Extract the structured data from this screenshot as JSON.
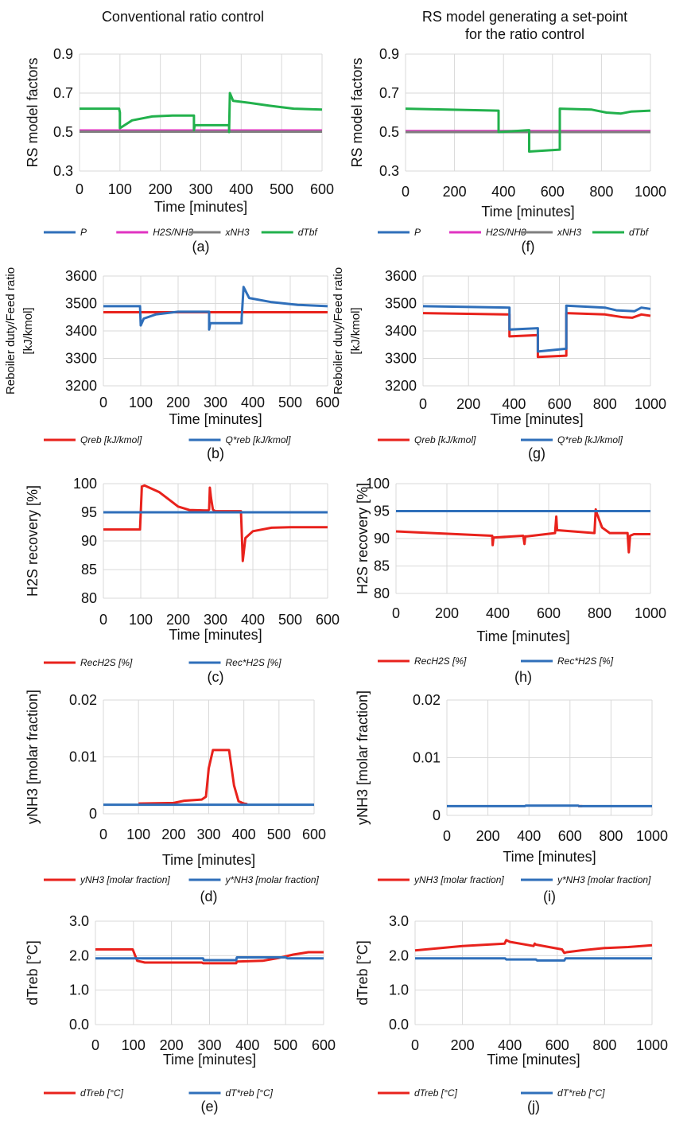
{
  "headers": {
    "left": "Conventional ratio control",
    "right_line1": "RS model generating a set-point",
    "right_line2": "for the ratio control"
  },
  "chart_data": [
    {
      "id": "a",
      "type": "line",
      "panel_label": "(a)",
      "ylabel": "RS model factors",
      "xlabel": "Time [minutes]",
      "ylim": [
        0.3,
        0.9
      ],
      "yticks": [
        "0.3",
        "0.5",
        "0.7",
        "0.9"
      ],
      "xlim": [
        0,
        600
      ],
      "xticks": [
        "0",
        "100",
        "200",
        "300",
        "400",
        "500",
        "600"
      ],
      "legend": [
        {
          "label": "P",
          "color": "#2f6fba"
        },
        {
          "label": "H2S/NH3",
          "color": "#e033c2"
        },
        {
          "label": "xNH3",
          "color": "#7f7f7f"
        },
        {
          "label": "dTbf",
          "color": "#22b14c"
        }
      ],
      "series": [
        {
          "name": "P",
          "color": "#2f6fba",
          "x": [
            0,
            600
          ],
          "y": [
            0.505,
            0.505
          ]
        },
        {
          "name": "H2S/NH3",
          "color": "#e033c2",
          "x": [
            0,
            600
          ],
          "y": [
            0.508,
            0.508
          ]
        },
        {
          "name": "xNH3",
          "color": "#7f7f7f",
          "x": [
            0,
            600
          ],
          "y": [
            0.502,
            0.502
          ]
        },
        {
          "name": "dTbf",
          "color": "#22b14c",
          "x": [
            0,
            98,
            100,
            100,
            130,
            180,
            230,
            283,
            283,
            285,
            370,
            370,
            372,
            380,
            420,
            470,
            530,
            600
          ],
          "y": [
            0.62,
            0.62,
            0.6,
            0.52,
            0.56,
            0.58,
            0.585,
            0.585,
            0.51,
            0.535,
            0.535,
            0.5,
            0.7,
            0.66,
            0.65,
            0.635,
            0.62,
            0.615
          ]
        }
      ]
    },
    {
      "id": "f",
      "type": "line",
      "panel_label": "(f)",
      "ylabel": "RS model factors",
      "xlabel": "Time [minutes]",
      "ylim": [
        0.3,
        0.9
      ],
      "yticks": [
        "0.3",
        "0.5",
        "0.7",
        "0.9"
      ],
      "xlim": [
        0,
        1000
      ],
      "xticks": [
        "0",
        "200",
        "400",
        "600",
        "800",
        "1000"
      ],
      "legend": [
        {
          "label": "P",
          "color": "#2f6fba"
        },
        {
          "label": "H2S/NH3",
          "color": "#e033c2"
        },
        {
          "label": "xNH3",
          "color": "#7f7f7f"
        },
        {
          "label": "dTbf",
          "color": "#22b14c"
        }
      ],
      "series": [
        {
          "name": "P",
          "color": "#2f6fba",
          "x": [
            0,
            1000
          ],
          "y": [
            0.502,
            0.502
          ]
        },
        {
          "name": "H2S/NH3",
          "color": "#e033c2",
          "x": [
            0,
            1000
          ],
          "y": [
            0.505,
            0.505
          ]
        },
        {
          "name": "xNH3",
          "color": "#7f7f7f",
          "x": [
            0,
            1000
          ],
          "y": [
            0.5,
            0.5
          ]
        },
        {
          "name": "dTbf",
          "color": "#22b14c",
          "x": [
            0,
            380,
            380,
            505,
            505,
            630,
            630,
            760,
            820,
            880,
            920,
            1000
          ],
          "y": [
            0.62,
            0.61,
            0.5,
            0.51,
            0.4,
            0.41,
            0.62,
            0.615,
            0.6,
            0.595,
            0.605,
            0.61
          ]
        }
      ]
    },
    {
      "id": "b",
      "type": "line",
      "panel_label": "(b)",
      "ylabel_lines": [
        "Reboiler duty/Feed ratio",
        "[kJ/kmol]"
      ],
      "xlabel": "Time [minutes]",
      "ylim": [
        3200,
        3600
      ],
      "yticks": [
        "3200",
        "3300",
        "3400",
        "3500",
        "3600"
      ],
      "xlim": [
        0,
        600
      ],
      "xticks": [
        "0",
        "100",
        "200",
        "300",
        "400",
        "500",
        "600"
      ],
      "legend": [
        {
          "label": "Qreb [kJ/kmol]",
          "color": "#e8221c"
        },
        {
          "label": "Q*reb [kJ/kmol]",
          "color": "#2f6fba"
        }
      ],
      "series": [
        {
          "name": "Qreb [kJ/kmol]",
          "color": "#e8221c",
          "x": [
            0,
            600
          ],
          "y": [
            3468,
            3468
          ]
        },
        {
          "name": "Q*reb [kJ/kmol]",
          "color": "#2f6fba",
          "x": [
            0,
            98,
            100,
            108,
            140,
            200,
            283,
            283,
            286,
            298,
            370,
            370,
            375,
            390,
            450,
            520,
            600
          ],
          "y": [
            3490,
            3490,
            3420,
            3445,
            3460,
            3470,
            3470,
            3405,
            3428,
            3428,
            3428,
            3445,
            3560,
            3520,
            3505,
            3495,
            3490
          ]
        }
      ]
    },
    {
      "id": "g",
      "type": "line",
      "panel_label": "(g)",
      "ylabel_lines": [
        "Reboiler duty/Feed ratio",
        "[kJ/kmol]"
      ],
      "xlabel": "Time [minutes]",
      "ylim": [
        3200,
        3600
      ],
      "yticks": [
        "3200",
        "3300",
        "3400",
        "3500",
        "3600"
      ],
      "xlim": [
        0,
        1000
      ],
      "xticks": [
        "0",
        "200",
        "400",
        "600",
        "800",
        "1000"
      ],
      "legend": [
        {
          "label": "Qreb [kJ/kmol]",
          "color": "#e8221c"
        },
        {
          "label": "Q*reb [kJ/kmol]",
          "color": "#2f6fba"
        }
      ],
      "series": [
        {
          "name": "Qreb [kJ/kmol]",
          "color": "#e8221c",
          "x": [
            0,
            380,
            380,
            505,
            505,
            630,
            630,
            800,
            880,
            920,
            960,
            1000
          ],
          "y": [
            3465,
            3460,
            3380,
            3385,
            3305,
            3310,
            3465,
            3460,
            3450,
            3448,
            3460,
            3455
          ]
        },
        {
          "name": "Q*reb [kJ/kmol]",
          "color": "#2f6fba",
          "x": [
            0,
            380,
            380,
            505,
            505,
            630,
            630,
            800,
            850,
            930,
            960,
            1000
          ],
          "y": [
            3490,
            3485,
            3405,
            3410,
            3325,
            3335,
            3492,
            3485,
            3475,
            3472,
            3485,
            3480
          ]
        }
      ]
    },
    {
      "id": "c",
      "type": "line",
      "panel_label": "(c)",
      "ylabel": "H2S recovery [%]",
      "xlabel": "Time [minutes]",
      "ylim": [
        80,
        100
      ],
      "yticks": [
        "80",
        "85",
        "90",
        "95",
        "100"
      ],
      "xlim": [
        0,
        600
      ],
      "xticks": [
        "0",
        "100",
        "200",
        "300",
        "400",
        "500",
        "600"
      ],
      "legend": [
        {
          "label": "RecH2S [%]",
          "color": "#e8221c"
        },
        {
          "label": "Rec*H2S [%]",
          "color": "#2f6fba"
        }
      ],
      "series": [
        {
          "name": "RecH2S [%]",
          "color": "#e8221c",
          "x": [
            0,
            98,
            103,
            110,
            150,
            180,
            200,
            230,
            280,
            283,
            285,
            288,
            293,
            298,
            368,
            370,
            373,
            380,
            400,
            450,
            500,
            600
          ],
          "y": [
            92,
            92,
            99.5,
            99.7,
            98.5,
            97,
            96,
            95.4,
            95.3,
            95.5,
            99.3,
            97.5,
            95.5,
            95.2,
            95.2,
            92,
            86.5,
            90.5,
            91.7,
            92.3,
            92.4,
            92.4
          ]
        },
        {
          "name": "Rec*H2S [%]",
          "color": "#2f6fba",
          "x": [
            0,
            600
          ],
          "y": [
            95,
            95
          ]
        }
      ]
    },
    {
      "id": "h",
      "type": "line",
      "panel_label": "(h)",
      "ylabel": "H2S recovery [%]",
      "xlabel": "Time [minutes]",
      "ylim": [
        80,
        100
      ],
      "yticks": [
        "80",
        "85",
        "90",
        "95",
        "100"
      ],
      "xlim": [
        0,
        1000
      ],
      "xticks": [
        "0",
        "200",
        "400",
        "600",
        "800",
        "1000"
      ],
      "legend": [
        {
          "label": "RecH2S [%]",
          "color": "#e8221c"
        },
        {
          "label": "Rec*H2S [%]",
          "color": "#2f6fba"
        }
      ],
      "series": [
        {
          "name": "RecH2S [%]",
          "color": "#e8221c",
          "x": [
            0,
            378,
            380,
            383,
            390,
            500,
            505,
            508,
            515,
            625,
            630,
            633,
            640,
            780,
            785,
            790,
            810,
            840,
            910,
            915,
            920,
            935,
            1000
          ],
          "y": [
            91.3,
            90.5,
            88.8,
            90.2,
            90.2,
            90.5,
            89,
            90.4,
            90.4,
            91,
            94,
            91.5,
            91.5,
            91,
            95.3,
            94.5,
            92,
            91,
            91,
            87.5,
            90.5,
            90.8,
            90.8
          ]
        },
        {
          "name": "Rec*H2S [%]",
          "color": "#2f6fba",
          "x": [
            0,
            1000
          ],
          "y": [
            95,
            95
          ]
        }
      ]
    },
    {
      "id": "d",
      "type": "line",
      "panel_label": "(d)",
      "ylabel": "yNH3 [molar fraction]",
      "xlabel": "Time [minutes]",
      "ylim": [
        0,
        0.02
      ],
      "yticks": [
        "0",
        "0.01",
        "0.02"
      ],
      "xlim": [
        0,
        600
      ],
      "xticks": [
        "0",
        "100",
        "200",
        "300",
        "400",
        "500",
        "600"
      ],
      "legend": [
        {
          "label": "yNH3 [molar fraction]",
          "color": "#e8221c"
        },
        {
          "label": "y*NH3 [molar fraction]",
          "color": "#2f6fba"
        }
      ],
      "series": [
        {
          "name": "yNH3 [molar fraction]",
          "color": "#e8221c",
          "x": [
            100,
            200,
            230,
            280,
            292,
            300,
            312,
            340,
            358,
            372,
            385,
            400,
            410
          ],
          "y": [
            0.0018,
            0.0019,
            0.0023,
            0.0025,
            0.003,
            0.008,
            0.0112,
            0.0112,
            0.0112,
            0.005,
            0.0022,
            0.0018,
            0.0017
          ]
        },
        {
          "name": "y*NH3 [molar fraction]",
          "color": "#2f6fba",
          "x": [
            0,
            600
          ],
          "y": [
            0.0016,
            0.0016
          ]
        }
      ]
    },
    {
      "id": "i",
      "type": "line",
      "panel_label": "(i)",
      "ylabel": "yNH3 [molar fraction]",
      "xlabel": "Time [minutes]",
      "ylim": [
        0,
        0.02
      ],
      "yticks": [
        "0",
        "0.01",
        "0.02"
      ],
      "xlim": [
        0,
        1000
      ],
      "xticks": [
        "0",
        "200",
        "400",
        "600",
        "800",
        "1000"
      ],
      "legend": [
        {
          "label": "yNH3 [molar fraction]",
          "color": "#e8221c"
        },
        {
          "label": "y*NH3 [molar fraction]",
          "color": "#2f6fba"
        }
      ],
      "series": [
        {
          "name": "yNH3 [molar fraction]",
          "color": "#e8221c",
          "x": [
            640,
            660
          ],
          "y": [
            0.0016,
            0.0016
          ]
        },
        {
          "name": "y*NH3 [molar fraction]",
          "color": "#2f6fba",
          "x": [
            0,
            380,
            385,
            640,
            645,
            1000
          ],
          "y": [
            0.0016,
            0.0016,
            0.0017,
            0.0017,
            0.0016,
            0.0016
          ]
        }
      ]
    },
    {
      "id": "e",
      "type": "line",
      "panel_label": "(e)",
      "ylabel": "dTreb [°C]",
      "xlabel": "Time [minutes]",
      "ylim": [
        0,
        3
      ],
      "yticks": [
        "0.0",
        "1.0",
        "2.0",
        "3.0"
      ],
      "xlim": [
        0,
        600
      ],
      "xticks": [
        "0",
        "100",
        "200",
        "300",
        "400",
        "500",
        "600"
      ],
      "legend": [
        {
          "label": "dTreb [°C]",
          "color": "#e8221c"
        },
        {
          "label": "dT*reb [°C]",
          "color": "#2f6fba"
        }
      ],
      "series": [
        {
          "name": "dTreb [°C]",
          "color": "#e8221c",
          "x": [
            0,
            98,
            110,
            130,
            280,
            283,
            370,
            372,
            440,
            480,
            520,
            560,
            600
          ],
          "y": [
            2.18,
            2.18,
            1.85,
            1.8,
            1.8,
            1.78,
            1.78,
            1.83,
            1.85,
            1.93,
            2.03,
            2.1,
            2.1
          ]
        },
        {
          "name": "dT*reb [°C]",
          "color": "#2f6fba",
          "x": [
            0,
            283,
            285,
            370,
            372,
            500,
            505,
            600
          ],
          "y": [
            1.92,
            1.92,
            1.87,
            1.87,
            1.95,
            1.95,
            1.92,
            1.92
          ]
        }
      ]
    },
    {
      "id": "j",
      "type": "line",
      "panel_label": "(j)",
      "ylabel": "dTreb [°C]",
      "xlabel": "Time [minutes]",
      "ylim": [
        0,
        3
      ],
      "yticks": [
        "0.0",
        "1.0",
        "2.0",
        "3.0"
      ],
      "xlim": [
        0,
        1000
      ],
      "xticks": [
        "0",
        "200",
        "400",
        "600",
        "800",
        "1000"
      ],
      "legend": [
        {
          "label": "dTreb [°C]",
          "color": "#e8221c"
        },
        {
          "label": "dT*reb [°C]",
          "color": "#2f6fba"
        }
      ],
      "series": [
        {
          "name": "dTreb [°C]",
          "color": "#e8221c",
          "x": [
            0,
            200,
            378,
            385,
            400,
            500,
            505,
            510,
            620,
            630,
            640,
            700,
            800,
            900,
            1000
          ],
          "y": [
            2.15,
            2.28,
            2.35,
            2.45,
            2.4,
            2.28,
            2.35,
            2.32,
            2.18,
            2.08,
            2.1,
            2.15,
            2.22,
            2.25,
            2.3
          ]
        },
        {
          "name": "dT*reb [°C]",
          "color": "#2f6fba",
          "x": [
            0,
            380,
            385,
            510,
            515,
            630,
            635,
            1000
          ],
          "y": [
            1.92,
            1.92,
            1.89,
            1.89,
            1.86,
            1.86,
            1.92,
            1.92
          ]
        }
      ]
    }
  ]
}
